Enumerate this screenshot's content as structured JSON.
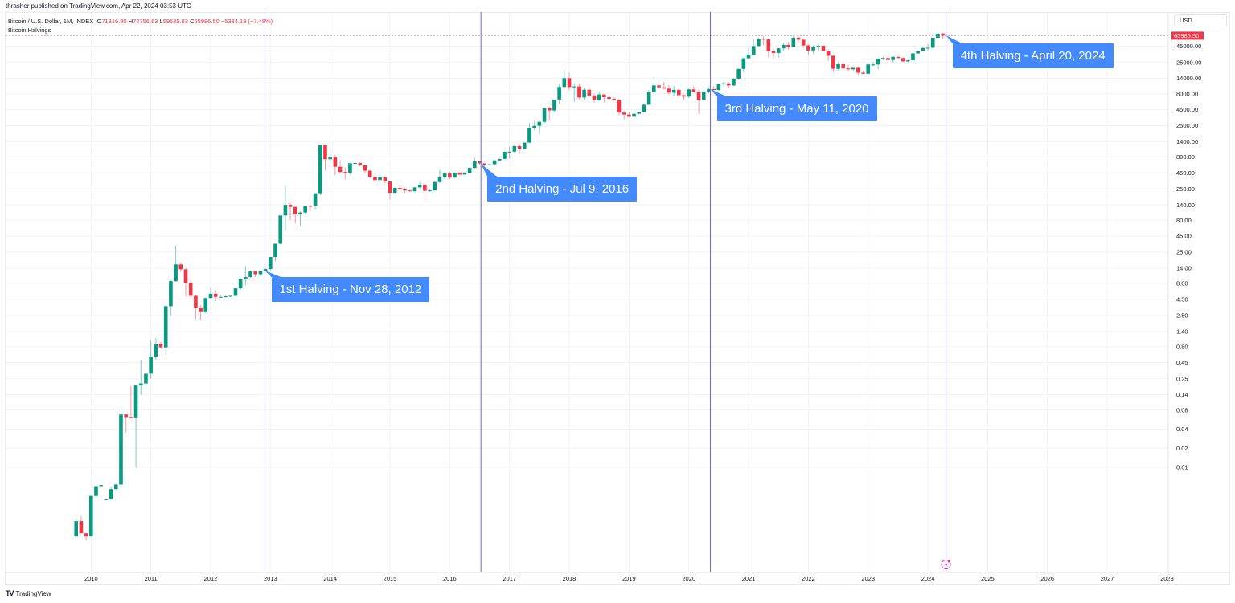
{
  "header": {
    "published": "thrasher published on TradingView.com, Apr 22, 2024 03:53 UTC"
  },
  "legend": {
    "symbol": "Bitcoin / U.S. Dollar, 1M, INDEX",
    "o_label": "O",
    "o": "71316.80",
    "h_label": "H",
    "h": "72756.63",
    "l_label": "L",
    "l": "59635.83",
    "c_label": "C",
    "c": "65986.50",
    "change": "−5334.18 (−7.48%)",
    "indicator": "Bitcoin Halvings"
  },
  "price_axis": {
    "currency": "USD",
    "last_price": "65986.50"
  },
  "footer": {
    "brand": "TradingView"
  },
  "colors": {
    "up": "#089981",
    "down": "#f23645",
    "halving_line": "#6b63d9",
    "annotation": "#448aff",
    "last_price": "#f23645"
  },
  "chart_data": {
    "type": "candlestick",
    "interval": "1M",
    "y_scale": "log",
    "grid": true,
    "y_ticks": [
      "45000.00",
      "25000.00",
      "14000.00",
      "8000.00",
      "4500.00",
      "2500.00",
      "1400.00",
      "800.00",
      "450.00",
      "250.00",
      "140.00",
      "80.00",
      "45.00",
      "25.00",
      "14.00",
      "8.00",
      "4.50",
      "2.50",
      "1.40",
      "0.80",
      "0.45",
      "0.25",
      "0.14",
      "0.08",
      "0.04",
      "0.02",
      "0.01"
    ],
    "x_ticks": [
      "2010",
      "2011",
      "2012",
      "2013",
      "2014",
      "2015",
      "2016",
      "2017",
      "2018",
      "2019",
      "2020",
      "2021",
      "2022",
      "2023",
      "2024",
      "2025",
      "2026",
      "2027",
      "2028"
    ],
    "candle_fields": [
      "month",
      "open",
      "high",
      "low",
      "close"
    ],
    "candles": [
      [
        "2009-10",
        0.0008,
        0.0015,
        0.0008,
        0.0014
      ],
      [
        "2009-11",
        0.0014,
        0.0017,
        0.0009,
        0.0009
      ],
      [
        "2009-12",
        0.0009,
        0.0009,
        0.0007,
        0.0008
      ],
      [
        "2010-01",
        0.0008,
        0.0036,
        0.0008,
        0.0035
      ],
      [
        "2010-02",
        0.0035,
        0.0051,
        0.0035,
        0.005
      ],
      [
        "2010-03",
        0.005,
        0.0053,
        0.005,
        0.0052
      ],
      [
        "2010-04",
        0.0031,
        0.0031,
        0.003,
        0.0031
      ],
      [
        "2010-05",
        0.0031,
        0.0048,
        0.003,
        0.0045
      ],
      [
        "2010-06",
        0.0045,
        0.0055,
        0.0044,
        0.0053
      ],
      [
        "2010-07",
        0.0053,
        0.09,
        0.0053,
        0.068
      ],
      [
        "2010-08",
        0.068,
        0.07,
        0.035,
        0.062
      ],
      [
        "2010-09",
        0.062,
        0.19,
        0.06,
        0.061
      ],
      [
        "2010-10",
        0.061,
        0.2,
        0.01,
        0.195
      ],
      [
        "2010-11",
        0.195,
        0.5,
        0.14,
        0.21
      ],
      [
        "2010-12",
        0.21,
        0.3,
        0.17,
        0.3
      ],
      [
        "2011-01",
        0.3,
        1.0,
        0.25,
        0.56
      ],
      [
        "2011-02",
        0.56,
        1.1,
        0.5,
        0.87
      ],
      [
        "2011-03",
        0.87,
        0.95,
        0.75,
        0.78
      ],
      [
        "2011-04",
        0.78,
        3.5,
        0.6,
        3.5
      ],
      [
        "2011-05",
        3.5,
        9,
        2.5,
        8.7
      ],
      [
        "2011-06",
        8.7,
        31,
        8.5,
        16
      ],
      [
        "2011-07",
        16,
        17,
        12,
        13.4
      ],
      [
        "2011-08",
        13.4,
        14,
        5,
        8.2
      ],
      [
        "2011-09",
        8.2,
        9,
        4.5,
        5.1
      ],
      [
        "2011-10",
        5.1,
        5.2,
        2.2,
        3.3
      ],
      [
        "2011-11",
        3.3,
        3.6,
        2.1,
        2.9
      ],
      [
        "2011-12",
        2.9,
        4.8,
        2.7,
        4.7
      ],
      [
        "2012-01",
        4.7,
        7,
        4.5,
        5.5
      ],
      [
        "2012-02",
        5.5,
        6.2,
        4.2,
        4.9
      ],
      [
        "2012-03",
        4.9,
        5.3,
        4.7,
        4.9
      ],
      [
        "2012-04",
        4.9,
        5.2,
        4.8,
        5
      ],
      [
        "2012-05",
        5,
        5.2,
        4.9,
        5.1
      ],
      [
        "2012-06",
        5.1,
        6.7,
        5.1,
        6.7
      ],
      [
        "2012-07",
        6.7,
        9.5,
        6.3,
        9.3
      ],
      [
        "2012-08",
        9.3,
        15,
        7.5,
        10.1
      ],
      [
        "2012-09",
        10.1,
        12.5,
        9.9,
        12.4
      ],
      [
        "2012-10",
        12.4,
        12.6,
        10,
        11.2
      ],
      [
        "2012-11",
        11.2,
        12.6,
        10.5,
        12.5
      ],
      [
        "2012-12",
        12.5,
        14,
        12.2,
        13.5
      ],
      [
        "2013-01",
        13.5,
        21,
        13,
        21
      ],
      [
        "2013-02",
        21,
        34,
        18,
        34
      ],
      [
        "2013-03",
        34,
        95,
        33,
        95
      ],
      [
        "2013-04",
        95,
        278,
        55,
        140
      ],
      [
        "2013-05",
        140,
        150,
        80,
        130
      ],
      [
        "2013-06",
        130,
        130,
        71,
        99
      ],
      [
        "2013-07",
        99,
        110,
        65,
        106
      ],
      [
        "2013-08",
        106,
        135,
        99,
        135
      ],
      [
        "2013-09",
        135,
        140,
        110,
        134
      ],
      [
        "2013-10",
        134,
        214,
        120,
        214
      ],
      [
        "2013-11",
        214,
        1235,
        200,
        1235
      ],
      [
        "2013-12",
        1235,
        1240,
        484,
        736
      ],
      [
        "2014-01",
        736,
        1040,
        720,
        810
      ],
      [
        "2014-02",
        810,
        850,
        410,
        559
      ],
      [
        "2014-03",
        559,
        710,
        440,
        461
      ],
      [
        "2014-04",
        461,
        545,
        355,
        447
      ],
      [
        "2014-05",
        447,
        635,
        420,
        635
      ],
      [
        "2014-06",
        635,
        680,
        550,
        640
      ],
      [
        "2014-07",
        640,
        655,
        570,
        588
      ],
      [
        "2014-08",
        588,
        600,
        440,
        485
      ],
      [
        "2014-09",
        485,
        500,
        370,
        390
      ],
      [
        "2014-10",
        390,
        420,
        280,
        344
      ],
      [
        "2014-11",
        344,
        460,
        320,
        380
      ],
      [
        "2014-12",
        380,
        390,
        310,
        327
      ],
      [
        "2015-01",
        327,
        330,
        170,
        217
      ],
      [
        "2015-02",
        217,
        265,
        210,
        259
      ],
      [
        "2015-03",
        259,
        300,
        240,
        246
      ],
      [
        "2015-04",
        246,
        265,
        215,
        236
      ],
      [
        "2015-05",
        236,
        245,
        225,
        230
      ],
      [
        "2015-06",
        230,
        270,
        220,
        264
      ],
      [
        "2015-07",
        264,
        320,
        253,
        290
      ],
      [
        "2015-08",
        290,
        300,
        165,
        233
      ],
      [
        "2015-09",
        233,
        245,
        225,
        236
      ],
      [
        "2015-10",
        236,
        330,
        235,
        321
      ],
      [
        "2015-11",
        321,
        500,
        310,
        379
      ],
      [
        "2015-12",
        379,
        470,
        350,
        438
      ],
      [
        "2016-01",
        438,
        465,
        355,
        378
      ],
      [
        "2016-02",
        378,
        460,
        365,
        452
      ],
      [
        "2016-03",
        452,
        460,
        405,
        422
      ],
      [
        "2016-04",
        422,
        465,
        410,
        450
      ],
      [
        "2016-05",
        450,
        550,
        440,
        538
      ],
      [
        "2016-06",
        538,
        780,
        515,
        680
      ],
      [
        "2016-07",
        680,
        700,
        610,
        632
      ],
      [
        "2016-08",
        632,
        640,
        535,
        605
      ],
      [
        "2016-09",
        605,
        615,
        590,
        612
      ],
      [
        "2016-10",
        612,
        720,
        605,
        705
      ],
      [
        "2016-11",
        705,
        750,
        695,
        745
      ],
      [
        "2016-12",
        745,
        980,
        740,
        965
      ],
      [
        "2017-01",
        965,
        1160,
        750,
        970
      ],
      [
        "2017-02",
        970,
        1210,
        915,
        1190
      ],
      [
        "2017-03",
        1190,
        1300,
        890,
        1080
      ],
      [
        "2017-04",
        1080,
        1350,
        1060,
        1348
      ],
      [
        "2017-05",
        1348,
        2760,
        1340,
        2300
      ],
      [
        "2017-06",
        2300,
        2980,
        2100,
        2480
      ],
      [
        "2017-07",
        2480,
        2920,
        1830,
        2875
      ],
      [
        "2017-08",
        2875,
        4750,
        2700,
        4700
      ],
      [
        "2017-09",
        4700,
        4980,
        2970,
        4338
      ],
      [
        "2017-10",
        4338,
        6470,
        4110,
        6468
      ],
      [
        "2017-11",
        6468,
        11400,
        5500,
        10233
      ],
      [
        "2017-12",
        10233,
        20180,
        10000,
        14070
      ],
      [
        "2018-01",
        14070,
        17250,
        9000,
        10200
      ],
      [
        "2018-02",
        10200,
        11800,
        5900,
        10397
      ],
      [
        "2018-03",
        10397,
        11700,
        6500,
        6973
      ],
      [
        "2018-04",
        6973,
        9750,
        6420,
        9240
      ],
      [
        "2018-05",
        9240,
        10000,
        7000,
        7494
      ],
      [
        "2018-06",
        7494,
        7770,
        5750,
        6404
      ],
      [
        "2018-07",
        6404,
        8500,
        6080,
        7780
      ],
      [
        "2018-08",
        7780,
        7800,
        5860,
        7037
      ],
      [
        "2018-09",
        7037,
        7400,
        6100,
        6625
      ],
      [
        "2018-10",
        6625,
        7000,
        6200,
        6318
      ],
      [
        "2018-11",
        6318,
        6580,
        3650,
        4017
      ],
      [
        "2018-12",
        4017,
        4300,
        3120,
        3742
      ],
      [
        "2019-01",
        3742,
        4100,
        3380,
        3457
      ],
      [
        "2019-02",
        3457,
        4200,
        3380,
        3854
      ],
      [
        "2019-03",
        3854,
        4150,
        3750,
        4105
      ],
      [
        "2019-04",
        4105,
        5630,
        4070,
        5350
      ],
      [
        "2019-05",
        5350,
        9080,
        5340,
        8574
      ],
      [
        "2019-06",
        8574,
        13880,
        7500,
        10817
      ],
      [
        "2019-07",
        10817,
        13150,
        9100,
        10085
      ],
      [
        "2019-08",
        10085,
        12300,
        9400,
        9631
      ],
      [
        "2019-09",
        9631,
        10900,
        7750,
        8293
      ],
      [
        "2019-10",
        8293,
        10550,
        7300,
        9199
      ],
      [
        "2019-11",
        9199,
        9550,
        6520,
        7569
      ],
      [
        "2019-12",
        7569,
        7750,
        6420,
        7193
      ],
      [
        "2020-01",
        7193,
        9580,
        6870,
        9350
      ],
      [
        "2020-02",
        9350,
        10500,
        8450,
        8600
      ],
      [
        "2020-03",
        8600,
        9200,
        3850,
        6438
      ],
      [
        "2020-04",
        6438,
        9470,
        6150,
        8658
      ],
      [
        "2020-05",
        8658,
        10080,
        8120,
        9461
      ],
      [
        "2020-06",
        9461,
        10400,
        8900,
        9138
      ],
      [
        "2020-07",
        9138,
        11450,
        8940,
        11351
      ],
      [
        "2020-08",
        11351,
        12480,
        10950,
        11655
      ],
      [
        "2020-09",
        11655,
        12100,
        9880,
        10779
      ],
      [
        "2020-10",
        10779,
        14100,
        10530,
        13805
      ],
      [
        "2020-11",
        13805,
        19900,
        13200,
        19698
      ],
      [
        "2020-12",
        19698,
        29300,
        17570,
        28990
      ],
      [
        "2021-01",
        28990,
        41950,
        28130,
        33114
      ],
      [
        "2021-02",
        33114,
        58350,
        32300,
        45137
      ],
      [
        "2021-03",
        45137,
        61800,
        44950,
        58918
      ],
      [
        "2021-04",
        58918,
        64900,
        47000,
        57750
      ],
      [
        "2021-05",
        57750,
        59600,
        30000,
        37332
      ],
      [
        "2021-06",
        37332,
        41300,
        28800,
        35041
      ],
      [
        "2021-07",
        35041,
        42400,
        29300,
        41626
      ],
      [
        "2021-08",
        41626,
        50500,
        37300,
        47166
      ],
      [
        "2021-09",
        47166,
        52900,
        39600,
        43790
      ],
      [
        "2021-10",
        43790,
        67000,
        43300,
        61318
      ],
      [
        "2021-11",
        61318,
        69000,
        53300,
        57005
      ],
      [
        "2021-12",
        57005,
        59100,
        42000,
        46306
      ],
      [
        "2022-01",
        46306,
        47990,
        32900,
        38483
      ],
      [
        "2022-02",
        38483,
        45800,
        34300,
        43193
      ],
      [
        "2022-03",
        43193,
        48200,
        37200,
        45538
      ],
      [
        "2022-04",
        45538,
        47450,
        37600,
        37714
      ],
      [
        "2022-05",
        37714,
        39900,
        26700,
        31792
      ],
      [
        "2022-06",
        31792,
        31990,
        17600,
        19785
      ],
      [
        "2022-07",
        19785,
        24650,
        18800,
        23336
      ],
      [
        "2022-08",
        23336,
        25200,
        19550,
        20050
      ],
      [
        "2022-09",
        20050,
        22800,
        18150,
        19423
      ],
      [
        "2022-10",
        19423,
        21000,
        18200,
        20496
      ],
      [
        "2022-11",
        20496,
        21500,
        15500,
        17168
      ],
      [
        "2022-12",
        17168,
        18400,
        16300,
        16547
      ],
      [
        "2023-01",
        16547,
        23950,
        16500,
        23139
      ],
      [
        "2023-02",
        23139,
        25250,
        21400,
        23147
      ],
      [
        "2023-03",
        23147,
        29200,
        19600,
        28478
      ],
      [
        "2023-04",
        28478,
        31000,
        26950,
        29268
      ],
      [
        "2023-05",
        29268,
        29850,
        25800,
        27219
      ],
      [
        "2023-06",
        27219,
        31400,
        24800,
        30477
      ],
      [
        "2023-07",
        30477,
        31800,
        28900,
        29230
      ],
      [
        "2023-08",
        29230,
        30200,
        25170,
        25940
      ],
      [
        "2023-09",
        25940,
        27500,
        24900,
        26962
      ],
      [
        "2023-10",
        26962,
        35200,
        26600,
        34639
      ],
      [
        "2023-11",
        34639,
        38400,
        34100,
        37723
      ],
      [
        "2023-12",
        37723,
        44700,
        37600,
        42265
      ],
      [
        "2024-01",
        42265,
        48900,
        38500,
        42582
      ],
      [
        "2024-02",
        42582,
        63900,
        41900,
        61198
      ],
      [
        "2024-03",
        61198,
        73800,
        59000,
        71316.8
      ],
      [
        "2024-04",
        71316.8,
        72756.63,
        59635.83,
        65986.5
      ]
    ],
    "halvings": [
      {
        "date": "2012-11-28",
        "label": "1st Halving - Nov 28, 2012"
      },
      {
        "date": "2016-07-09",
        "label": "2nd Halving - Jul 9, 2016"
      },
      {
        "date": "2020-05-11",
        "label": "3rd Halving - May 11, 2020"
      },
      {
        "date": "2024-04-20",
        "label": "4th Halving - April 20, 2024"
      }
    ]
  }
}
